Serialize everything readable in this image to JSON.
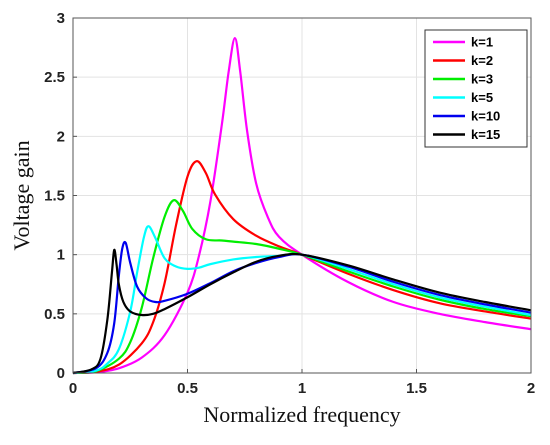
{
  "chart_data": {
    "type": "line",
    "xlabel": "Normalized frequency",
    "ylabel": "Voltage gain",
    "xlim": [
      0,
      2
    ],
    "ylim": [
      0,
      3
    ],
    "x_ticks": [
      "0",
      "0.5",
      "1",
      "1.5",
      "2"
    ],
    "y_ticks": [
      "0",
      "0.5",
      "1",
      "1.5",
      "2",
      "2.5",
      "3"
    ],
    "grid": true,
    "legend_position": "top-right",
    "series": [
      {
        "name": "k=1",
        "color": "#ff00ff",
        "x": [
          0,
          0.1,
          0.2,
          0.3,
          0.4,
          0.5,
          0.55,
          0.6,
          0.65,
          0.68,
          0.707,
          0.73,
          0.76,
          0.8,
          0.85,
          0.9,
          1.0,
          1.2,
          1.4,
          1.6,
          1.8,
          2.0
        ],
        "y": [
          0,
          0.006,
          0.04,
          0.13,
          0.32,
          0.68,
          0.99,
          1.45,
          2.1,
          2.55,
          2.83,
          2.55,
          2.05,
          1.6,
          1.32,
          1.15,
          1.0,
          0.77,
          0.6,
          0.5,
          0.43,
          0.37
        ]
      },
      {
        "name": "k=2",
        "color": "#ff0000",
        "x": [
          0,
          0.1,
          0.2,
          0.3,
          0.35,
          0.4,
          0.45,
          0.5,
          0.54,
          0.58,
          0.62,
          0.7,
          0.8,
          0.9,
          1.0,
          1.2,
          1.4,
          1.6,
          1.8,
          2.0
        ],
        "y": [
          0,
          0.01,
          0.07,
          0.25,
          0.43,
          0.76,
          1.25,
          1.66,
          1.79,
          1.69,
          1.51,
          1.3,
          1.16,
          1.07,
          1.0,
          0.84,
          0.7,
          0.59,
          0.52,
          0.46
        ]
      },
      {
        "name": "k=3",
        "color": "#00ee00",
        "x": [
          0,
          0.1,
          0.2,
          0.25,
          0.3,
          0.35,
          0.4,
          0.44,
          0.48,
          0.52,
          0.58,
          0.65,
          0.7,
          0.8,
          0.9,
          1.0,
          1.2,
          1.4,
          1.6,
          1.8,
          2.0
        ],
        "y": [
          0,
          0.015,
          0.12,
          0.26,
          0.55,
          0.97,
          1.32,
          1.46,
          1.37,
          1.22,
          1.13,
          1.12,
          1.11,
          1.09,
          1.05,
          1.0,
          0.86,
          0.73,
          0.62,
          0.54,
          0.48
        ]
      },
      {
        "name": "k=5",
        "color": "#00ffff",
        "x": [
          0,
          0.1,
          0.15,
          0.2,
          0.25,
          0.28,
          0.31,
          0.33,
          0.36,
          0.4,
          0.45,
          0.5,
          0.55,
          0.6,
          0.7,
          0.8,
          0.9,
          1.0,
          1.2,
          1.4,
          1.6,
          1.8,
          2.0
        ],
        "y": [
          0,
          0.02,
          0.08,
          0.2,
          0.52,
          0.85,
          1.15,
          1.24,
          1.14,
          0.97,
          0.9,
          0.88,
          0.89,
          0.92,
          0.96,
          0.98,
          0.99,
          1.0,
          0.88,
          0.75,
          0.64,
          0.56,
          0.49
        ]
      },
      {
        "name": "k=10",
        "color": "#0000ee",
        "x": [
          0,
          0.1,
          0.15,
          0.18,
          0.2,
          0.215,
          0.23,
          0.25,
          0.28,
          0.32,
          0.36,
          0.4,
          0.5,
          0.6,
          0.7,
          0.8,
          0.9,
          1.0,
          1.2,
          1.4,
          1.6,
          1.8,
          2.0
        ],
        "y": [
          0,
          0.04,
          0.17,
          0.42,
          0.82,
          1.05,
          1.1,
          0.93,
          0.73,
          0.63,
          0.6,
          0.61,
          0.67,
          0.76,
          0.86,
          0.93,
          0.98,
          1.0,
          0.9,
          0.77,
          0.66,
          0.58,
          0.51
        ]
      },
      {
        "name": "k=15",
        "color": "#000000",
        "x": [
          0,
          0.08,
          0.12,
          0.15,
          0.17,
          0.18,
          0.19,
          0.2,
          0.22,
          0.25,
          0.3,
          0.35,
          0.4,
          0.5,
          0.6,
          0.7,
          0.8,
          0.9,
          1.0,
          1.2,
          1.4,
          1.6,
          1.8,
          2.0
        ],
        "y": [
          0,
          0.03,
          0.12,
          0.45,
          0.85,
          1.04,
          0.92,
          0.75,
          0.6,
          0.52,
          0.49,
          0.5,
          0.54,
          0.64,
          0.75,
          0.85,
          0.94,
          0.99,
          1.0,
          0.91,
          0.79,
          0.68,
          0.6,
          0.53
        ]
      }
    ]
  }
}
